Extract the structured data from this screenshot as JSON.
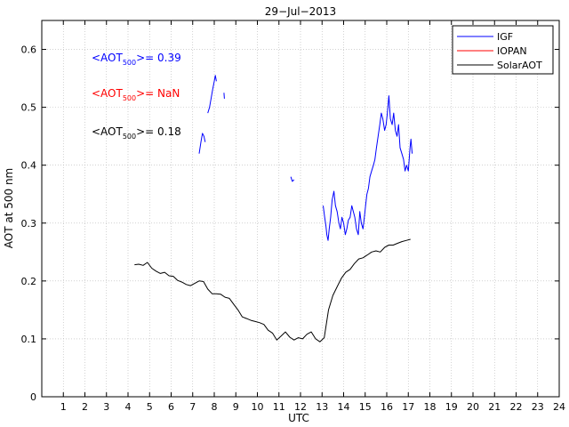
{
  "chart_data": {
    "type": "line",
    "title": "29−Jul−2013",
    "xlabel": "UTC",
    "ylabel": "AOT at 500 nm",
    "xlim": [
      0,
      24
    ],
    "ylim": [
      0,
      0.65
    ],
    "x_ticks": [
      1,
      2,
      3,
      4,
      5,
      6,
      7,
      8,
      9,
      10,
      11,
      12,
      13,
      14,
      15,
      16,
      17,
      18,
      19,
      20,
      21,
      22,
      23,
      24
    ],
    "y_ticks": [
      0,
      0.1,
      0.2,
      0.3,
      0.4,
      0.5,
      0.6
    ],
    "y_tick_labels": [
      "0",
      "0.1",
      "0.2",
      "0.3",
      "0.4",
      "0.5",
      "0.6"
    ],
    "grid": true,
    "legend_position": "top-right",
    "colors": {
      "IGF": "#0000ff",
      "IOPAN": "#ff0000",
      "SolarAOT": "#000000"
    },
    "series": [
      {
        "name": "IGF",
        "segments": [
          {
            "x": [
              7.3,
              7.38,
              7.45,
              7.52,
              7.58
            ],
            "y": [
              0.42,
              0.44,
              0.455,
              0.45,
              0.44
            ]
          },
          {
            "x": [
              7.7,
              7.78,
              7.85,
              7.92,
              8.0,
              8.05,
              8.1
            ],
            "y": [
              0.49,
              0.5,
              0.515,
              0.53,
              0.545,
              0.555,
              0.545
            ]
          },
          {
            "x": [
              8.45,
              8.47
            ],
            "y": [
              0.525,
              0.515
            ]
          },
          {
            "x": [
              11.55,
              11.62,
              11.7
            ],
            "y": [
              0.38,
              0.372,
              0.375
            ]
          },
          {
            "x": [
              13.05,
              13.12,
              13.18,
              13.22,
              13.28,
              13.33,
              13.4,
              13.47,
              13.55,
              13.62,
              13.7,
              13.78,
              13.85,
              13.92,
              14.0,
              14.08,
              14.15,
              14.22,
              14.3,
              14.38,
              14.45,
              14.52,
              14.6,
              14.68,
              14.75,
              14.82,
              14.9,
              14.96,
              15.02,
              15.08,
              15.15,
              15.22,
              15.3,
              15.38,
              15.45,
              15.52,
              15.6,
              15.68,
              15.75,
              15.82,
              15.9,
              15.97,
              16.03,
              16.1,
              16.17,
              16.25,
              16.32,
              16.4,
              16.48,
              16.55,
              16.62,
              16.7,
              16.78,
              16.85,
              16.92,
              17.0,
              17.08,
              17.12,
              17.18
            ],
            "y": [
              0.33,
              0.31,
              0.295,
              0.28,
              0.27,
              0.29,
              0.31,
              0.34,
              0.355,
              0.33,
              0.32,
              0.3,
              0.29,
              0.31,
              0.3,
              0.28,
              0.29,
              0.305,
              0.31,
              0.33,
              0.32,
              0.31,
              0.29,
              0.28,
              0.32,
              0.3,
              0.29,
              0.31,
              0.33,
              0.35,
              0.36,
              0.38,
              0.39,
              0.4,
              0.41,
              0.43,
              0.45,
              0.47,
              0.49,
              0.48,
              0.46,
              0.47,
              0.49,
              0.52,
              0.48,
              0.47,
              0.49,
              0.46,
              0.45,
              0.47,
              0.43,
              0.42,
              0.41,
              0.39,
              0.4,
              0.39,
              0.43,
              0.445,
              0.42
            ]
          }
        ]
      },
      {
        "name": "IOPAN",
        "segments": []
      },
      {
        "name": "SolarAOT",
        "segments": [
          {
            "x": [
              4.3,
              4.5,
              4.7,
              4.9,
              5.1,
              5.3,
              5.5,
              5.7,
              5.9,
              6.1,
              6.3,
              6.5,
              6.7,
              6.9,
              7.1,
              7.3,
              7.5,
              7.7,
              7.9,
              8.1,
              8.3,
              8.5,
              8.7,
              8.9,
              9.1,
              9.3,
              9.5,
              9.7,
              9.9,
              10.1,
              10.3,
              10.5,
              10.7,
              10.9,
              11.1,
              11.3,
              11.5,
              11.7,
              11.9,
              12.1,
              12.3,
              12.5,
              12.7,
              12.9,
              13.1,
              13.3,
              13.5,
              13.7,
              13.9,
              14.1,
              14.3,
              14.5,
              14.7,
              14.9,
              15.1,
              15.3,
              15.5,
              15.7,
              15.9,
              16.1,
              16.3,
              16.5,
              16.7,
              16.9,
              17.1
            ],
            "y": [
              0.228,
              0.229,
              0.227,
              0.232,
              0.222,
              0.217,
              0.213,
              0.215,
              0.209,
              0.208,
              0.201,
              0.198,
              0.194,
              0.192,
              0.196,
              0.2,
              0.199,
              0.186,
              0.178,
              0.178,
              0.177,
              0.172,
              0.17,
              0.16,
              0.15,
              0.138,
              0.135,
              0.132,
              0.13,
              0.128,
              0.125,
              0.115,
              0.11,
              0.098,
              0.105,
              0.112,
              0.103,
              0.098,
              0.102,
              0.1,
              0.108,
              0.112,
              0.1,
              0.095,
              0.102,
              0.15,
              0.175,
              0.19,
              0.205,
              0.215,
              0.22,
              0.23,
              0.238,
              0.24,
              0.245,
              0.25,
              0.252,
              0.25,
              0.258,
              0.262,
              0.262,
              0.265,
              0.268,
              0.27,
              0.272
            ]
          }
        ]
      }
    ],
    "annotations": [
      {
        "prefix": "<AOT",
        "sub": "500",
        "suffix": ">= 0.39",
        "color": "#0000ff"
      },
      {
        "prefix": "<AOT",
        "sub": "500",
        "suffix": ">=  NaN",
        "color": "#ff0000"
      },
      {
        "prefix": "<AOT",
        "sub": "500",
        "suffix": ">= 0.18",
        "color": "#000000"
      }
    ]
  }
}
